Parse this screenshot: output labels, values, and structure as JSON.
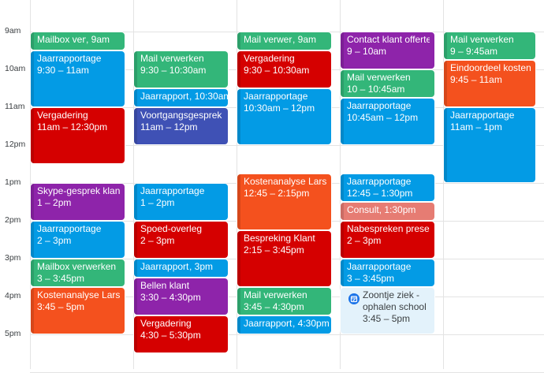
{
  "time_labels": [
    "9am",
    "10am",
    "11am",
    "12pm",
    "1pm",
    "2pm",
    "3pm",
    "4pm",
    "5pm"
  ],
  "colors": {
    "green": "#33b679",
    "blue": "#039be5",
    "red": "#d50000",
    "purple": "#8e24aa",
    "indigo": "#3f51b5",
    "orange": "#f4511e",
    "salmon": "#e67c73",
    "pale": "#e3f2fb"
  },
  "days": [
    {
      "events": [
        {
          "title": "Mailbox verwerken",
          "time": "9am",
          "start": 9.0,
          "end": 9.5,
          "color": "green",
          "single": true
        },
        {
          "title": "Jaarrapportage",
          "time": "9:30 – 11am",
          "start": 9.5,
          "end": 11.0,
          "color": "blue"
        },
        {
          "title": "Vergadering",
          "time": "11am – 12:30pm",
          "start": 11.0,
          "end": 12.5,
          "color": "red"
        },
        {
          "title": "Skype-gesprek klant",
          "time": "1 – 2pm",
          "start": 13.0,
          "end": 14.0,
          "color": "purple"
        },
        {
          "title": "Jaarrapportage",
          "time": "2 – 3pm",
          "start": 14.0,
          "end": 15.0,
          "color": "blue"
        },
        {
          "title": "Mailbox verwerken",
          "time": "3 – 3:45pm",
          "start": 15.0,
          "end": 15.75,
          "color": "green"
        },
        {
          "title": "Kostenanalyse Lars",
          "time": "3:45 – 5pm",
          "start": 15.75,
          "end": 17.0,
          "color": "orange"
        }
      ]
    },
    {
      "events": [
        {
          "title": "Mail verwerken",
          "time": "9:30 – 10:30am",
          "start": 9.5,
          "end": 10.5,
          "color": "green"
        },
        {
          "title": "Jaarrapportage",
          "time": "10:30am",
          "start": 10.5,
          "end": 11.0,
          "color": "blue",
          "single": true
        },
        {
          "title": "Voortgangsgesprek",
          "time": "11am – 12pm",
          "start": 11.0,
          "end": 12.0,
          "color": "indigo"
        },
        {
          "title": "Jaarrapportage",
          "time": "1 – 2pm",
          "start": 13.0,
          "end": 14.0,
          "color": "blue"
        },
        {
          "title": "Spoed-overleg",
          "time": "2 – 3pm",
          "start": 14.0,
          "end": 15.0,
          "color": "red"
        },
        {
          "title": "Jaarrapportage",
          "time": "3pm",
          "start": 15.0,
          "end": 15.5,
          "color": "blue",
          "single": true
        },
        {
          "title": "Bellen klant",
          "time": "3:30 – 4:30pm",
          "start": 15.5,
          "end": 16.5,
          "color": "purple"
        },
        {
          "title": "Vergadering",
          "time": "4:30 – 5:30pm",
          "start": 16.5,
          "end": 17.5,
          "color": "red"
        }
      ]
    },
    {
      "events": [
        {
          "title": "Mail verwerken",
          "time": "9am",
          "start": 9.0,
          "end": 9.5,
          "color": "green",
          "single": true
        },
        {
          "title": "Vergadering",
          "time": "9:30 – 10:30am",
          "start": 9.5,
          "end": 10.5,
          "color": "red"
        },
        {
          "title": "Jaarrapportage",
          "time": "10:30am – 12pm",
          "start": 10.5,
          "end": 12.0,
          "color": "blue"
        },
        {
          "title": "Kostenanalyse Lars",
          "time": "12:45 – 2:15pm",
          "start": 12.75,
          "end": 14.25,
          "color": "orange"
        },
        {
          "title": "Bespreking Klant",
          "time": "2:15 – 3:45pm",
          "start": 14.25,
          "end": 15.75,
          "color": "red"
        },
        {
          "title": "Mail verwerken",
          "time": "3:45 – 4:30pm",
          "start": 15.75,
          "end": 16.5,
          "color": "green"
        },
        {
          "title": "Jaarrapportage",
          "time": "4:30pm",
          "start": 16.5,
          "end": 17.0,
          "color": "blue",
          "single": true
        }
      ]
    },
    {
      "events": [
        {
          "title": "Contact klant offerte",
          "time": "9 – 10am",
          "start": 9.0,
          "end": 10.0,
          "color": "purple"
        },
        {
          "title": "Mail verwerken",
          "time": "10 – 10:45am",
          "start": 10.0,
          "end": 10.75,
          "color": "green"
        },
        {
          "title": "Jaarrapportage",
          "time": "10:45am – 12pm",
          "start": 10.75,
          "end": 12.0,
          "color": "blue"
        },
        {
          "title": "Jaarrapportage",
          "time": "12:45 – 1:30pm",
          "start": 12.75,
          "end": 13.5,
          "color": "blue"
        },
        {
          "title": "Consult",
          "time": "1:30pm",
          "start": 13.5,
          "end": 14.0,
          "color": "salmon",
          "single": true
        },
        {
          "title": "Nabespreken presentatie",
          "time": "2 – 3pm",
          "start": 14.0,
          "end": 15.0,
          "color": "red"
        },
        {
          "title": "Jaarrapportage",
          "time": "3 – 3:45pm",
          "start": 15.0,
          "end": 15.75,
          "color": "blue"
        },
        {
          "title": "Zoontje ziek - ophalen school",
          "time": "3:45 – 5pm",
          "start": 15.75,
          "end": 17.0,
          "color": "pale",
          "icon": true
        }
      ]
    },
    {
      "events": [
        {
          "title": "Mail verwerken",
          "time": "9 – 9:45am",
          "start": 9.0,
          "end": 9.75,
          "color": "green"
        },
        {
          "title": "Eindoordeel kostenanalyse",
          "time": "9:45 – 11am",
          "start": 9.75,
          "end": 11.0,
          "color": "orange"
        },
        {
          "title": "Jaarrapportage",
          "time": "11am – 1pm",
          "start": 11.0,
          "end": 13.0,
          "color": "blue"
        }
      ]
    }
  ]
}
